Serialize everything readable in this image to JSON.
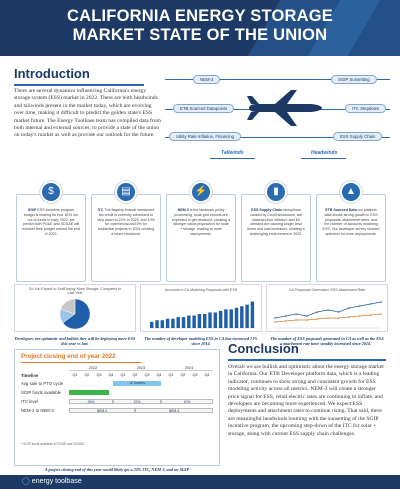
{
  "header": {
    "title_line1": "CALIFORNIA ENERGY STORAGE",
    "title_line2": "MARKET STATE OF THE UNION"
  },
  "intro": {
    "title": "Introduction",
    "body": "There are several dynamics influencing California's energy storage system (ESS) market in 2022. There are both headwinds and tailwinds present in the market today, which are evolving over time, making it difficult to predict the golden state's ESS market future. The Energy Toolbase team has compiled data from both internal and external sources, to provide a state of the union on today's market as well as provide our outlook for the future."
  },
  "winds": {
    "tailwinds_label": "Tailwinds",
    "headwinds_label": "Headwinds",
    "tailwinds": [
      "NEM-3",
      "ETB Sourced Datapoints",
      "Utility Rate Inflation, Financing"
    ],
    "headwinds": [
      "SGIP Sunsetting",
      "ITC Stepdown",
      "ESS Supply Chain"
    ]
  },
  "cards": [
    {
      "bold": "SGIP",
      "text": " ESS incentive program budget is nearing its end. 81% run out of funds in early 2022, we predict both PG&E and SDG&E will exhaust their budget around the end of 2022.",
      "icon": "coin-icon"
    },
    {
      "bold": "ITC",
      "text": " The flagship federal investment tax credit is currently scheduled to step down to 22% in 2023, and 10% for commercial and 0% for residential projects in 2024 creating a future headwind.",
      "icon": "document-icon"
    },
    {
      "bold": "NEM-3",
      "text": " is the landmark policy proceeding, solar grid exports are expected to get devalued, creating a stronger value-proposition for solar + storage, leading to more deployments.",
      "icon": "grid-icon"
    },
    {
      "bold": "ESS Supply Chain",
      "text": " disruptions caused by Covid shutdowns, are material price inflation, and EV demand are causing longer lead times and cost increases, creating a challenging environment in 2022.",
      "icon": "battery-icon"
    },
    {
      "bold": "ETB Sourced Data",
      "text": " our platform data shows strong growth in ESS proposals, attachment rates, and the number of accounts modeling ESS. Our developer survey showed optimism for more deployments.",
      "icon": "chart-icon"
    }
  ],
  "charts": {
    "pie_title": "Do You Expect to Sell/Deploy More Storage, Compared to Last Year",
    "bar_title": "Accounts in CA Modeling Proposals with ESS",
    "line_title": "CA Proposals Generated; ESS Attachment Rate"
  },
  "chart_data": [
    {
      "type": "pie",
      "title": "Do You Expect to Sell/Deploy More Storage, Compared to Last Year",
      "categories": [
        "Yes",
        "No",
        "Same"
      ],
      "values": [
        65,
        15,
        20
      ],
      "colors": [
        "#1f5fa8",
        "#9cc3e8",
        "#c7c7c7"
      ]
    },
    {
      "type": "bar",
      "title": "Accounts in CA Modeling Proposals with ESS",
      "categories": [
        "1",
        "2",
        "3",
        "4",
        "5",
        "6",
        "7",
        "8",
        "9",
        "10",
        "11",
        "12",
        "13",
        "14",
        "15",
        "16",
        "17",
        "18",
        "19",
        "20"
      ],
      "values": [
        4,
        5,
        5,
        6,
        6,
        7,
        7,
        8,
        8,
        9,
        9,
        10,
        10,
        11,
        12,
        12,
        13,
        14,
        15,
        17
      ],
      "ylim": [
        0,
        18
      ]
    },
    {
      "type": "line",
      "title": "CA Proposals Generated; ESS Attachment Rate",
      "categories": [
        "1",
        "2",
        "3",
        "4",
        "5",
        "6",
        "7",
        "8",
        "9",
        "10",
        "11"
      ],
      "series": [
        {
          "values": [
            5,
            6,
            7,
            6,
            8,
            9,
            8,
            10,
            11,
            12,
            13
          ]
        },
        {
          "values": [
            3,
            3.5,
            4,
            4,
            4.5,
            5,
            5,
            5.5,
            6,
            6.5,
            7
          ]
        }
      ],
      "ylim": [
        0,
        14
      ]
    }
  ],
  "captions": {
    "pie": "Developers are optimistic and bullish they will be deploying more ESS this year vs last.",
    "bar": "The number of developer modeling ESS in CA has increased 71% since 2014.",
    "line": "The number of ESS proposals generated in CA as well as the ESS attachment rate have steadily increased since 2014."
  },
  "timeline": {
    "title": "Project closing end of year 2022",
    "years": [
      "2022",
      "2023",
      "2024"
    ],
    "quarters": [
      "Q1",
      "Q2",
      "Q3",
      "Q4",
      "Q1",
      "Q2",
      "Q3",
      "Q4",
      "Q1",
      "Q2",
      "Q3",
      "Q4"
    ],
    "label_col": "Timeline",
    "rows": [
      {
        "label": "Avg sale to PTO cycle",
        "bar": "12 months"
      },
      {
        "label": "SGIP funds available",
        "bar": ""
      },
      {
        "label": "ITC level",
        "bars": [
          "26%",
          "22%",
          "10%"
        ]
      },
      {
        "label": "NEM-2 to NEM-3",
        "bars": [
          "NEM-2",
          "NEM-3"
        ]
      }
    ],
    "footnote": "* SGIP funds available to PG&E and SDG&E",
    "caption": "A project closing end of this year would likely get a 22% ITC, NEM-3, and no SGIP"
  },
  "conclusion": {
    "title": "Conclusion",
    "body": "Overall we are bullish and optimistic about the energy storage market in California. Our ETB Developer platform data, which is a leading indicator, continues to show strong and consistent growth for ESS modeling activity across all metrics. NEM-3 will create a stronger price signal for ESS, retail electric rates are continuing to inflate, and developers are becoming more experienced. We expect ESS deployments and attachment rates to continue rising. That said, there are meaningful headwinds looming with the sunsetting of the SGIP incentive program, the upcoming step-down of the ITC for solar + storage, along with current ESS supply chain challenges."
  },
  "footer": {
    "brand": "energy toolbase"
  }
}
